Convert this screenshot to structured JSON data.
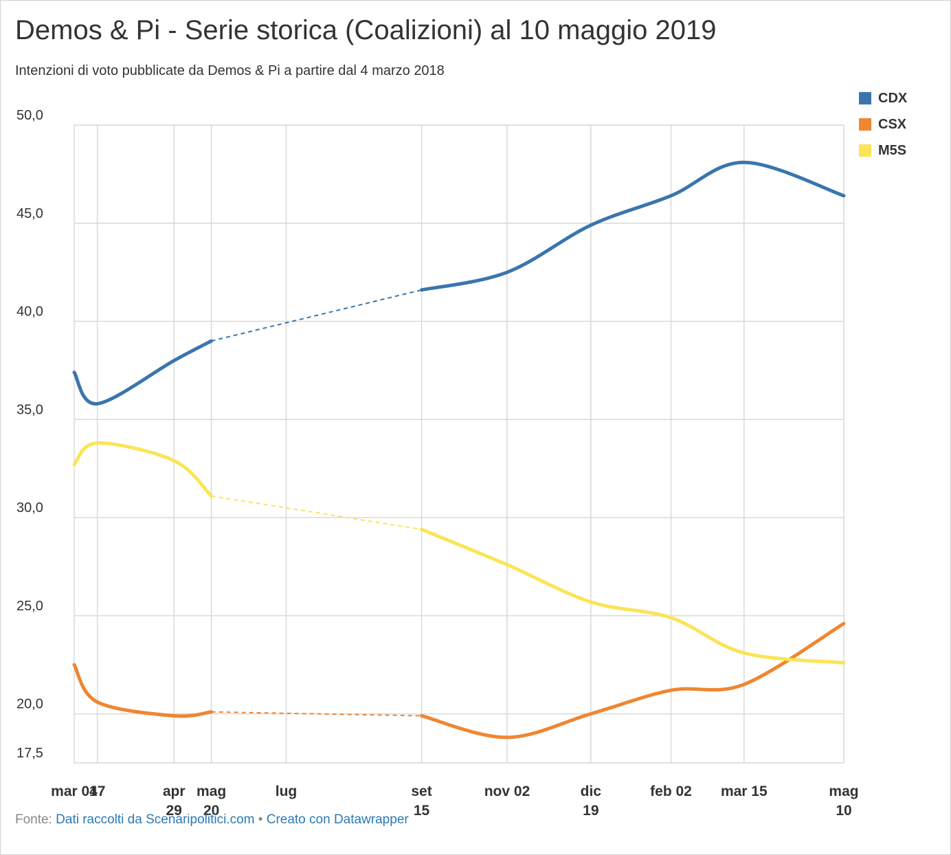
{
  "title": "Demos & Pi - Serie storica (Coalizioni) al 10 maggio 2019",
  "subtitle": "Intenzioni di voto pubblicate da Demos & Pi a partire dal 4 marzo 2018",
  "source": {
    "prefix": "Fonte:",
    "source_link": "Dati raccolti da Scenaripolitici.com",
    "separator": "•",
    "tool_link": "Creato con Datawrapper"
  },
  "colors": {
    "CDX": "#3a75ad",
    "CSX": "#ef8632",
    "M5S": "#fbe456",
    "grid": "#d9d9d9",
    "text": "#333333"
  },
  "chart_data": {
    "type": "line",
    "title": "Demos & Pi - Serie storica (Coalizioni) al 10 maggio 2019",
    "xlabel": "",
    "ylabel": "",
    "ylim": [
      17.5,
      50
    ],
    "yticks": [
      "50,0",
      "45,0",
      "40,0",
      "35,0",
      "30,0",
      "25,0",
      "20,0",
      "17,5"
    ],
    "ytick_values": [
      50,
      45,
      40,
      35,
      30,
      25,
      20,
      17.5
    ],
    "xlim": [
      "2018-03-04",
      "2019-05-10"
    ],
    "xticks": [
      {
        "date": "2018-03-04",
        "label": [
          "mar 04"
        ]
      },
      {
        "date": "2018-03-17",
        "label": [
          "17"
        ]
      },
      {
        "date": "2018-04-29",
        "label": [
          "apr",
          "29"
        ]
      },
      {
        "date": "2018-05-20",
        "label": [
          "mag",
          "20"
        ]
      },
      {
        "date": "2018-07-01",
        "label": [
          "lug"
        ]
      },
      {
        "date": "2018-09-15",
        "label": [
          "set",
          "15"
        ]
      },
      {
        "date": "2018-11-02",
        "label": [
          "nov 02"
        ]
      },
      {
        "date": "2018-12-19",
        "label": [
          "dic",
          "19"
        ]
      },
      {
        "date": "2019-02-02",
        "label": [
          "feb 02"
        ]
      },
      {
        "date": "2019-03-15",
        "label": [
          "mar 15"
        ]
      },
      {
        "date": "2019-05-10",
        "label": [
          "mag",
          "10"
        ]
      }
    ],
    "gap": [
      "2018-05-20",
      "2018-09-15"
    ],
    "grid": true,
    "legend": "top-right",
    "x": [
      "2018-03-04",
      "2018-03-17",
      "2018-04-29",
      "2018-05-20",
      "2018-09-15",
      "2018-11-02",
      "2018-12-19",
      "2019-02-02",
      "2019-03-15",
      "2019-05-10"
    ],
    "series": [
      {
        "name": "CDX",
        "values": [
          37.4,
          35.8,
          38.0,
          39.0,
          41.6,
          42.5,
          44.9,
          46.4,
          48.1,
          46.4
        ]
      },
      {
        "name": "CSX",
        "values": [
          22.5,
          20.6,
          19.9,
          20.1,
          19.9,
          18.8,
          20.0,
          21.2,
          21.5,
          24.6
        ]
      },
      {
        "name": "M5S",
        "values": [
          32.7,
          33.8,
          32.9,
          31.1,
          29.4,
          27.6,
          25.7,
          24.9,
          23.1,
          22.6
        ]
      }
    ]
  }
}
